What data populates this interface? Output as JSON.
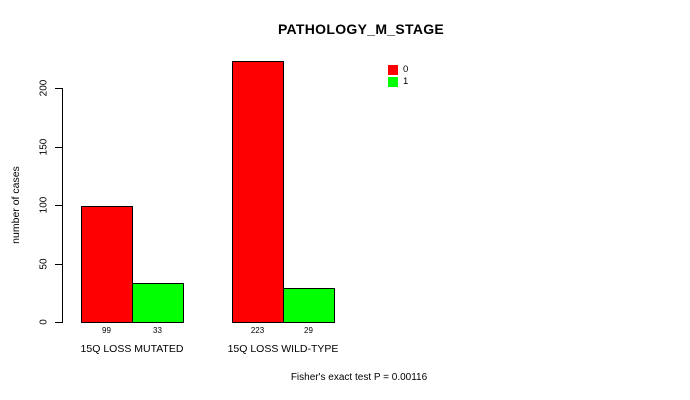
{
  "chart_data": {
    "type": "bar",
    "title": "PATHOLOGY_M_STAGE",
    "xlabel": "",
    "ylabel": "number of cases",
    "categories": [
      "15Q LOSS MUTATED",
      "15Q LOSS WILD-TYPE"
    ],
    "series": [
      {
        "name": "0",
        "color": "#ff0000",
        "values": [
          99,
          223
        ]
      },
      {
        "name": "1",
        "color": "#00ff00",
        "values": [
          33,
          29
        ]
      }
    ],
    "value_labels": [
      [
        99,
        33
      ],
      [
        223,
        29
      ]
    ],
    "yticks": [
      0,
      50,
      100,
      150,
      200
    ],
    "ylim": [
      0,
      200
    ],
    "grid": false,
    "legend_position": "top-right",
    "annotation": "Fisher's exact test P = 0.00116"
  },
  "colors": {
    "background": "#ffffff",
    "axis": "#000000",
    "text": "#000000",
    "bar_border": "#000000"
  }
}
